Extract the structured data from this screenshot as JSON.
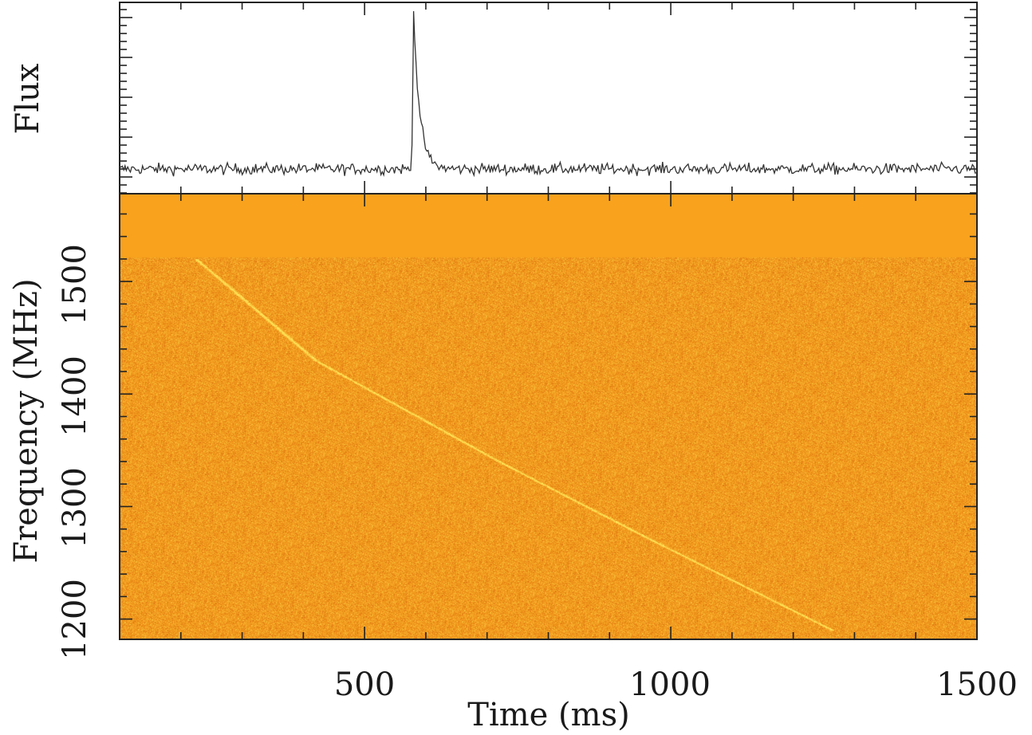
{
  "chart_data": [
    {
      "type": "line",
      "panel": "top",
      "title": "",
      "xlabel": "",
      "ylabel": "Flux",
      "xlim": [
        100,
        1500
      ],
      "y_tick_labels": "none",
      "grid": false,
      "series": [
        {
          "color": "#333333",
          "baseline": 0.0,
          "noise_amplitude": 0.03,
          "peak": {
            "x": 580,
            "y": 1.0
          },
          "rise_ms": 3,
          "decay_ms": 10
        }
      ]
    },
    {
      "type": "heatmap",
      "panel": "bottom",
      "title": "",
      "xlabel": "Time (ms)",
      "ylabel": "Frequency (MHz)",
      "xlim": [
        100,
        1500
      ],
      "ylim": [
        1182,
        1578
      ],
      "x_ticks": [
        500,
        1000,
        1500
      ],
      "y_ticks": [
        1200,
        1300,
        1400,
        1500
      ],
      "x_tick_labels": [
        "500",
        "1000",
        "1500"
      ],
      "y_tick_labels": [
        "1200",
        "1300",
        "1400",
        "1500"
      ],
      "masked_band": {
        "freq_range": [
          1521,
          1578
        ],
        "color": "#f8a21d"
      },
      "dispersed_burst": {
        "time_at_reference_ms": 580,
        "reference_freq_mhz": 1350,
        "track_points": [
          {
            "time": 225,
            "freq": 1520
          },
          {
            "time": 420,
            "freq": 1430
          },
          {
            "time": 720,
            "freq": 1340
          },
          {
            "time": 970,
            "freq": 1270
          },
          {
            "time": 1265,
            "freq": 1190
          }
        ]
      },
      "colormap": {
        "low": "#cc5a08",
        "mid": "#f39a1c",
        "high": "#ffe85a"
      }
    }
  ]
}
